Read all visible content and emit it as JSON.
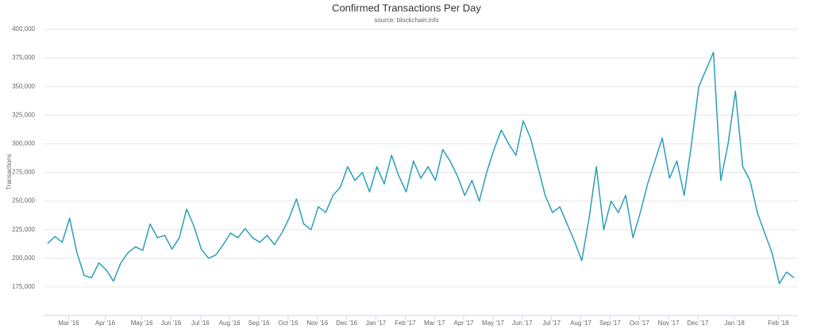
{
  "chart_data": {
    "type": "line",
    "title": "Confirmed Transactions Per Day",
    "subtitle": "source: blockchain.info",
    "y_label": "Transactions",
    "categories": [
      null,
      null,
      "Mar '16",
      null,
      null,
      null,
      null,
      "Apr '16",
      null,
      null,
      null,
      null,
      "May '16",
      null,
      null,
      null,
      "Jun '16",
      null,
      null,
      null,
      "Jul '16",
      null,
      null,
      null,
      "Aug '16",
      null,
      null,
      null,
      "Sep '16",
      null,
      null,
      null,
      "Oct '16",
      null,
      null,
      null,
      "Nov '16",
      null,
      null,
      null,
      "Dec '16",
      null,
      null,
      null,
      "Jan '17",
      null,
      null,
      null,
      "Feb '17",
      null,
      null,
      null,
      "Mar '17",
      null,
      null,
      null,
      "Apr '17",
      null,
      null,
      null,
      "May '17",
      null,
      null,
      null,
      "Jun '17",
      null,
      null,
      null,
      "Jul '17",
      null,
      null,
      null,
      "Aug '17",
      null,
      null,
      null,
      "Sep '17",
      null,
      null,
      null,
      "Oct '17",
      null,
      null,
      null,
      "Nov '17",
      null,
      null,
      null,
      "Dec '17",
      null,
      null,
      null,
      null,
      "Jan '18",
      null,
      null,
      null,
      null,
      null,
      "Feb '18",
      null,
      null,
      null
    ],
    "series": [
      {
        "name": "Transactions",
        "color": "#2a9fb8",
        "values": [
          213000,
          219000,
          214000,
          235000,
          205000,
          185000,
          183000,
          196000,
          190000,
          180000,
          196000,
          205000,
          210000,
          207000,
          230000,
          218000,
          220000,
          208000,
          218000,
          243000,
          228000,
          208000,
          200000,
          203000,
          212000,
          222000,
          218000,
          226000,
          218000,
          214000,
          220000,
          212000,
          222000,
          235000,
          252000,
          230000,
          225000,
          245000,
          240000,
          255000,
          262000,
          280000,
          268000,
          275000,
          258000,
          280000,
          265000,
          290000,
          272000,
          258000,
          285000,
          270000,
          280000,
          268000,
          295000,
          285000,
          272000,
          255000,
          268000,
          250000,
          275000,
          295000,
          312000,
          300000,
          290000,
          320000,
          305000,
          280000,
          255000,
          240000,
          245000,
          230000,
          215000,
          198000,
          235000,
          280000,
          225000,
          250000,
          240000,
          255000,
          218000,
          240000,
          265000,
          285000,
          305000,
          270000,
          285000,
          255000,
          300000,
          350000,
          365000,
          380000,
          268000,
          300000,
          346000,
          280000,
          268000,
          240000,
          222000,
          205000,
          178000,
          188000,
          183000
        ]
      }
    ],
    "ylim": [
      150000,
      400000
    ],
    "yticks": [
      {
        "value": 175000,
        "label": "175,000"
      },
      {
        "value": 200000,
        "label": "200,000"
      },
      {
        "value": 225000,
        "label": "225,000"
      },
      {
        "value": 250000,
        "label": "250,000"
      },
      {
        "value": 275000,
        "label": "275,000"
      },
      {
        "value": 300000,
        "label": "300,000"
      },
      {
        "value": 325000,
        "label": "325,000"
      },
      {
        "value": 350000,
        "label": "350,000"
      },
      {
        "value": 375000,
        "label": "375,000"
      },
      {
        "value": 400000,
        "label": "400,000"
      }
    ],
    "grid": true
  }
}
